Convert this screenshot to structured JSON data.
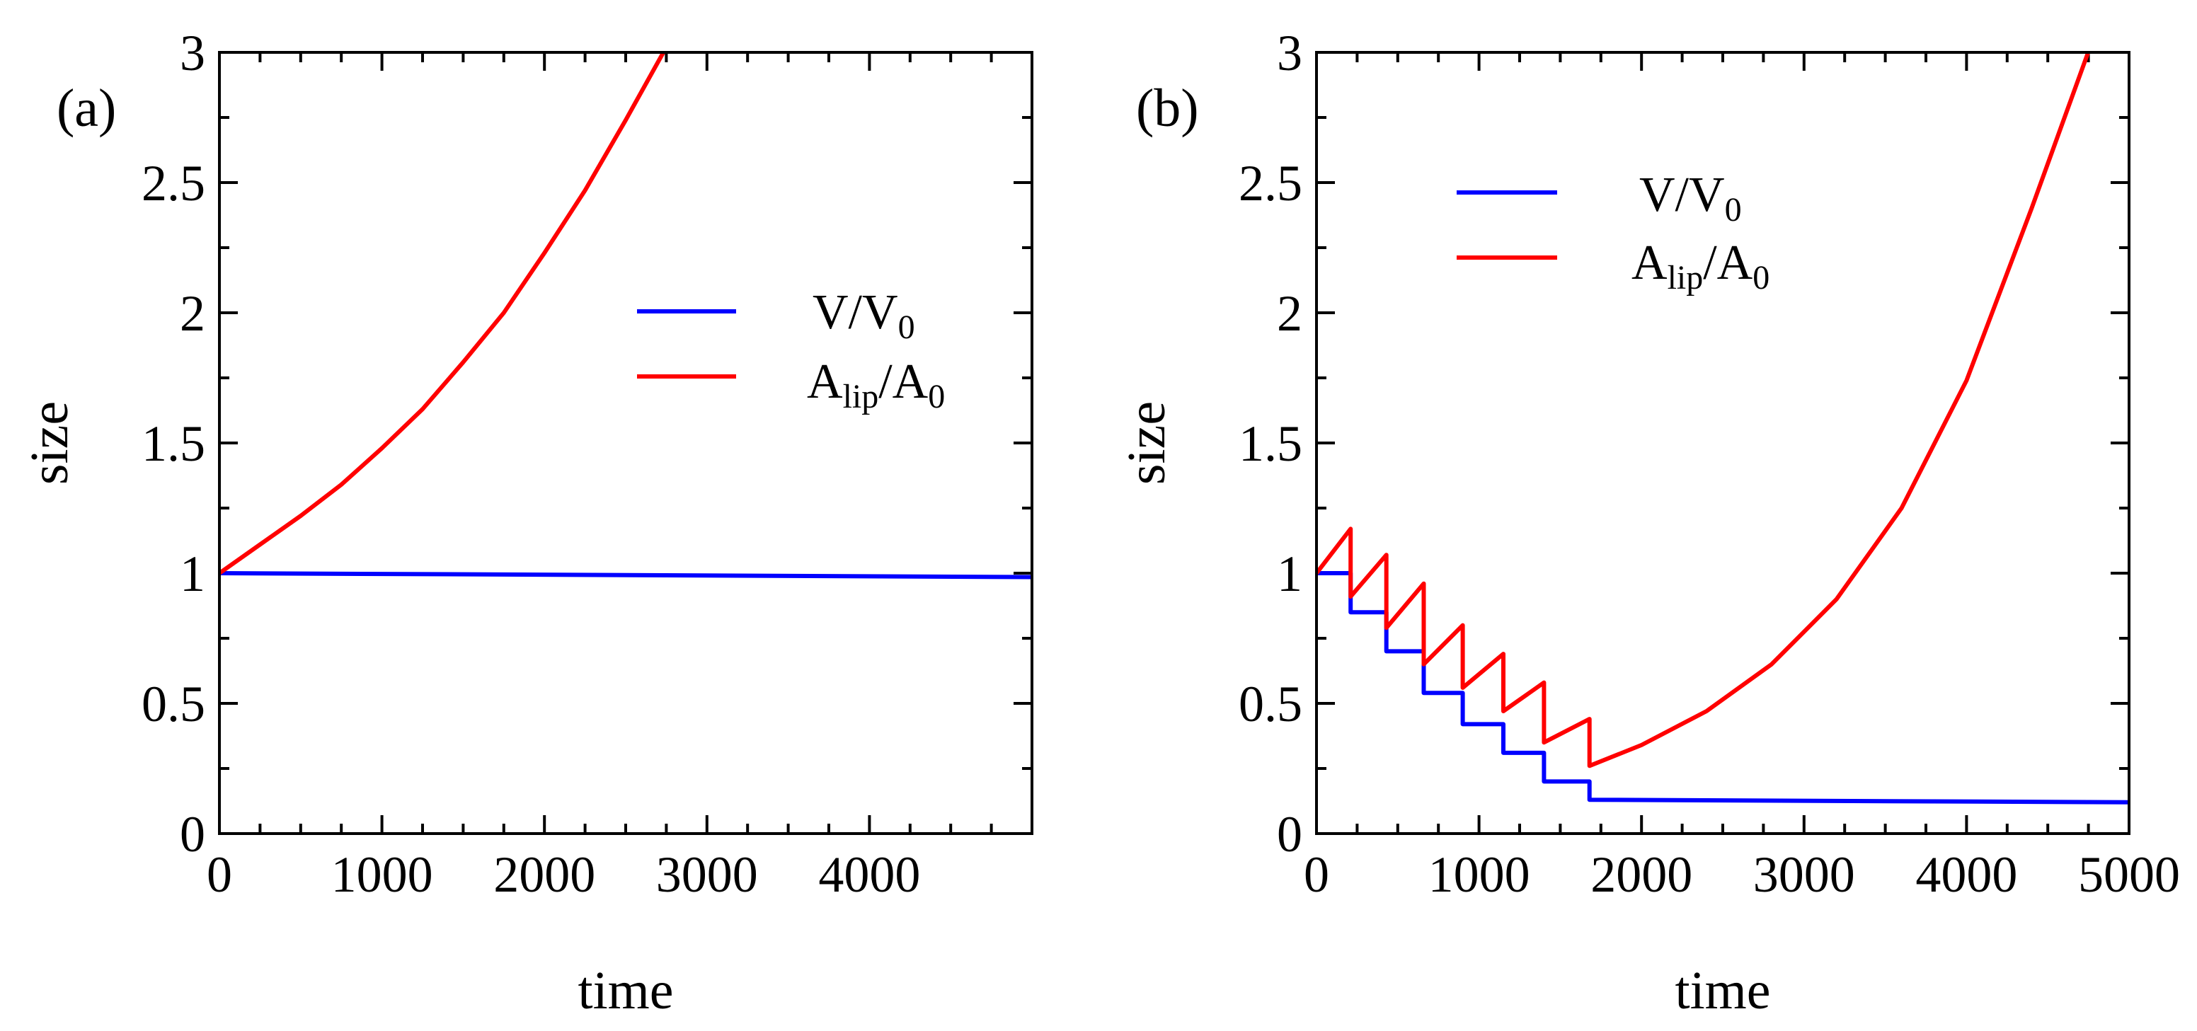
{
  "chart_data": [
    {
      "panel": "(a)",
      "type": "line",
      "xlabel": "time",
      "ylabel": "size",
      "xlim": [
        0,
        5000
      ],
      "ylim": [
        0,
        3
      ],
      "xticks": [
        0,
        1000,
        2000,
        3000,
        4000
      ],
      "xtick_labels": [
        "0",
        "1000",
        "2000",
        "3000",
        "4000"
      ],
      "yticks": [
        0,
        0.5,
        1,
        1.5,
        2,
        2.5,
        3
      ],
      "ytick_labels": [
        "0",
        "0.5",
        "1",
        "1.5",
        "2",
        "2.5",
        "3"
      ],
      "legend": {
        "position": "center-right"
      },
      "series": [
        {
          "name": "V/V",
          "name_sub": "0",
          "color": "#0000ff",
          "x": [
            0,
            5000
          ],
          "y": [
            1.0,
            0.985
          ]
        },
        {
          "name": "A",
          "name_sub_lip": "lip",
          "name_mid": "/A",
          "name_sub": "0",
          "color": "#ff0000",
          "x": [
            0,
            250,
            500,
            750,
            1000,
            1250,
            1500,
            1750,
            2000,
            2250,
            2500,
            2750
          ],
          "y": [
            1.0,
            1.11,
            1.22,
            1.34,
            1.48,
            1.63,
            1.81,
            2.0,
            2.23,
            2.47,
            2.74,
            3.02
          ]
        }
      ]
    },
    {
      "panel": "(b)",
      "type": "line",
      "xlabel": "time",
      "ylabel": "size",
      "xlim": [
        0,
        5000
      ],
      "ylim": [
        0,
        3
      ],
      "xticks": [
        0,
        1000,
        2000,
        3000,
        4000,
        5000
      ],
      "xtick_labels": [
        "0",
        "1000",
        "2000",
        "3000",
        "4000",
        "5000"
      ],
      "yticks": [
        0,
        0.5,
        1,
        1.5,
        2,
        2.5,
        3
      ],
      "ytick_labels": [
        "0",
        "0.5",
        "1",
        "1.5",
        "2",
        "2.5",
        "3"
      ],
      "legend": {
        "position": "top-center"
      },
      "series": [
        {
          "name": "V/V",
          "name_sub": "0",
          "color": "#0000ff",
          "x": [
            0,
            210,
            210,
            430,
            430,
            660,
            660,
            900,
            900,
            1150,
            1150,
            1400,
            1400,
            1680,
            1680,
            5000
          ],
          "y": [
            1.0,
            1.0,
            0.85,
            0.85,
            0.7,
            0.7,
            0.54,
            0.54,
            0.42,
            0.42,
            0.31,
            0.31,
            0.2,
            0.2,
            0.13,
            0.12
          ]
        },
        {
          "name": "A",
          "name_sub_lip": "lip",
          "name_mid": "/A",
          "name_sub": "0",
          "color": "#ff0000",
          "x": [
            0,
            210,
            210,
            430,
            430,
            660,
            660,
            900,
            900,
            1150,
            1150,
            1400,
            1400,
            1680,
            1680,
            2000,
            2400,
            2800,
            3200,
            3600,
            4000,
            4400,
            4760
          ],
          "y": [
            1.0,
            1.17,
            0.91,
            1.07,
            0.79,
            0.96,
            0.65,
            0.8,
            0.56,
            0.69,
            0.47,
            0.58,
            0.35,
            0.44,
            0.26,
            0.34,
            0.47,
            0.65,
            0.9,
            1.25,
            1.74,
            2.4,
            3.02
          ]
        }
      ]
    }
  ]
}
